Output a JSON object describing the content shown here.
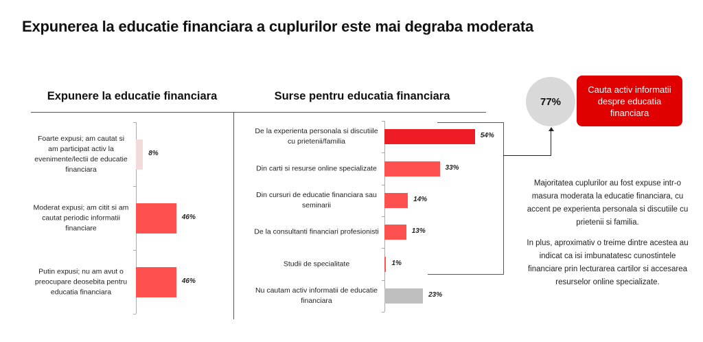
{
  "title": "Expunerea la educatie financiara a cuplurilor este mai degraba moderata",
  "chart_data": [
    {
      "type": "bar",
      "orientation": "horizontal",
      "title": "Expunere la educatie financiara",
      "categories": [
        "Foarte expusi; am cautat si am participat activ la evenimente/lectii de educatie financiara",
        "Moderat expusi; am citit si am cautat periodic informatii financiare",
        "Putin expusi; nu am avut o preocupare deosebita pentru educatia financiara"
      ],
      "values": [
        8,
        46,
        46
      ],
      "labels": [
        "8%",
        "46%",
        "46%"
      ],
      "colors": [
        "#f2dcdb",
        "#ff5050",
        "#ff5050"
      ],
      "unit": "%"
    },
    {
      "type": "bar",
      "orientation": "horizontal",
      "title": "Surse pentru educatia financiara",
      "categories": [
        "De la experienta personala si discutiile cu prietenii/familia",
        "Din carti si resurse online specializate",
        "Din cursuri de educatie financiara sau seminarii",
        "De la consultanti financiari profesionisti",
        "Studii de specialitate",
        "Nu cautam activ informatii de educatie financiara"
      ],
      "values": [
        54,
        33,
        14,
        13,
        1,
        23
      ],
      "labels": [
        "54%",
        "33%",
        "14%",
        "13%",
        "1%",
        "23%"
      ],
      "colors": [
        "#ee1c25",
        "#ff5050",
        "#ff5050",
        "#ff5050",
        "#ff5050",
        "#bfbfbf"
      ],
      "unit": "%"
    }
  ],
  "callout": {
    "value": "77%",
    "label": "Cauta activ informatii despre educatia financiara"
  },
  "paragraphs": [
    "Majoritatea cuplurilor au fost expuse intr-o masura moderata la educatie financiara, cu accent pe experienta personala si discutiile cu prietenii si familia.",
    "In plus, aproximativ o treime dintre acestea au indicat ca isi imbunatatesc cunostintele financiare prin lecturarea cartilor si accesarea resurselor online specializate."
  ]
}
